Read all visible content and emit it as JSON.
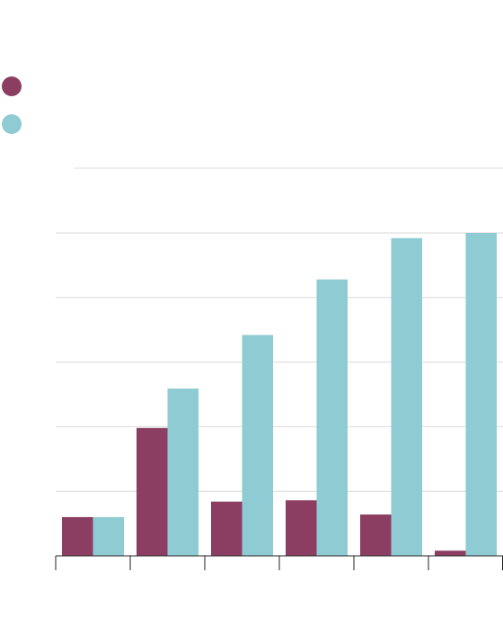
{
  "chart_data": {
    "type": "bar",
    "title": "",
    "xlabel": "",
    "ylabel": "",
    "categories": [
      "",
      "",
      "",
      "",
      "",
      ""
    ],
    "ylim": [
      0,
      5
    ],
    "grid": true,
    "legend_placement": "top-left",
    "series": [
      {
        "color": "#8b3e62",
        "values": [
          0.6,
          1.98,
          0.84,
          0.86,
          0.64,
          0.08
        ]
      },
      {
        "color": "#8ecbd3",
        "values": [
          0.6,
          2.59,
          3.42,
          4.28,
          4.92,
          5.0
        ]
      }
    ]
  }
}
